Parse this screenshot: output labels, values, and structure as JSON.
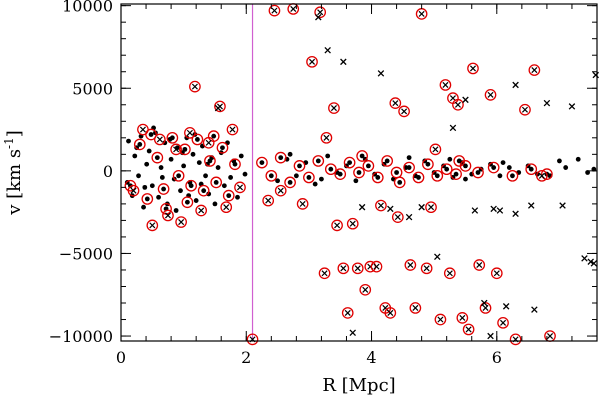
{
  "chart_data": {
    "type": "scatter",
    "xlabel": "R [Mpc]",
    "ylabel_main": "v [km s",
    "ylabel_sup": "-1",
    "ylabel_close": "]",
    "xlim": [
      0,
      7.6
    ],
    "ylim": [
      -10300,
      10100
    ],
    "x_ticks": [
      {
        "value": 0,
        "label": "0"
      },
      {
        "value": 2,
        "label": "2"
      },
      {
        "value": 4,
        "label": "4"
      },
      {
        "value": 6,
        "label": "6"
      }
    ],
    "y_ticks": [
      {
        "value": -10000,
        "label": "−10000"
      },
      {
        "value": -5000,
        "label": "−5000"
      },
      {
        "value": 0,
        "label": "0"
      },
      {
        "value": 5000,
        "label": "5000"
      },
      {
        "value": 10000,
        "label": "10000"
      }
    ],
    "x_minor_step": 0.4,
    "y_minor_step": 1000,
    "vline": {
      "x": 2.1,
      "color": "#d060d0"
    },
    "colors": {
      "ring": "#e00000",
      "dot": "#000000",
      "axis": "#000000"
    },
    "series": [
      {
        "marker": "dot",
        "points": [
          [
            0.12,
            1800
          ],
          [
            0.18,
            -1500
          ],
          [
            0.22,
            900
          ],
          [
            0.28,
            -300
          ],
          [
            0.32,
            2100
          ],
          [
            0.36,
            -2200
          ],
          [
            0.41,
            400
          ],
          [
            0.45,
            1200
          ],
          [
            0.5,
            -900
          ],
          [
            0.55,
            2300
          ],
          [
            0.6,
            -1600
          ],
          [
            0.64,
            200
          ],
          [
            0.7,
            1700
          ],
          [
            0.74,
            -2000
          ],
          [
            0.8,
            700
          ],
          [
            0.85,
            -500
          ],
          [
            0.9,
            1400
          ],
          [
            0.95,
            -1200
          ],
          [
            1.0,
            300
          ],
          [
            1.05,
            2000
          ],
          [
            1.1,
            -700
          ],
          [
            1.15,
            1000
          ],
          [
            1.2,
            -1800
          ],
          [
            1.25,
            500
          ],
          [
            1.3,
            1500
          ],
          [
            1.35,
            -300
          ],
          [
            1.4,
            -1400
          ],
          [
            1.45,
            800
          ],
          [
            1.5,
            -2000
          ],
          [
            1.55,
            200
          ],
          [
            1.6,
            1100
          ],
          [
            1.65,
            -900
          ],
          [
            1.7,
            1700
          ],
          [
            1.75,
            -400
          ],
          [
            1.8,
            600
          ],
          [
            1.86,
            -1600
          ],
          [
            1.92,
            900
          ],
          [
            1.98,
            -200
          ],
          [
            0.1,
            -700
          ],
          [
            0.25,
            1400
          ],
          [
            0.38,
            -1000
          ],
          [
            0.52,
            2600
          ],
          [
            0.66,
            -400
          ],
          [
            0.78,
            1900
          ],
          [
            0.88,
            -2400
          ],
          [
            0.98,
            1100
          ],
          [
            1.08,
            -1500
          ],
          [
            1.18,
            2200
          ],
          [
            1.28,
            -800
          ],
          [
            1.38,
            400
          ],
          [
            2.5,
            -600
          ],
          [
            2.65,
            700
          ],
          [
            2.8,
            -300
          ],
          [
            2.95,
            500
          ],
          [
            3.1,
            -800
          ],
          [
            3.3,
            900
          ],
          [
            3.45,
            -100
          ],
          [
            3.6,
            300
          ],
          [
            3.75,
            -600
          ],
          [
            3.9,
            700
          ],
          [
            4.05,
            -200
          ],
          [
            4.2,
            400
          ],
          [
            4.35,
            -500
          ],
          [
            4.55,
            200
          ],
          [
            4.7,
            -300
          ],
          [
            4.85,
            600
          ],
          [
            5.0,
            -100
          ],
          [
            5.15,
            300
          ],
          [
            5.3,
            -400
          ],
          [
            5.45,
            500
          ],
          [
            5.6,
            -200
          ],
          [
            5.75,
            100
          ],
          [
            5.9,
            400
          ],
          [
            6.05,
            -300
          ],
          [
            6.2,
            200
          ],
          [
            6.35,
            -100
          ],
          [
            6.5,
            300
          ],
          [
            6.65,
            -200
          ],
          [
            6.85,
            -300
          ],
          [
            7.0,
            600
          ],
          [
            7.1,
            200
          ],
          [
            7.3,
            700
          ],
          [
            7.45,
            -100
          ],
          [
            7.55,
            100
          ],
          [
            4.6,
            800
          ],
          [
            5.5,
            -500
          ],
          [
            3.2,
            -500
          ],
          [
            2.7,
            1000
          ],
          [
            6.1,
            500
          ],
          [
            5.25,
            700
          ]
        ]
      },
      {
        "marker": "ringdot",
        "points": [
          [
            0.15,
            -900
          ],
          [
            0.3,
            1600
          ],
          [
            0.42,
            -1700
          ],
          [
            0.58,
            800
          ],
          [
            0.68,
            -1100
          ],
          [
            0.82,
            2000
          ],
          [
            0.92,
            -300
          ],
          [
            1.02,
            1300
          ],
          [
            1.12,
            -900
          ],
          [
            1.22,
            1900
          ],
          [
            1.32,
            -1200
          ],
          [
            1.42,
            600
          ],
          [
            1.52,
            -700
          ],
          [
            1.62,
            1400
          ],
          [
            1.72,
            -1500
          ],
          [
            1.82,
            400
          ],
          [
            0.48,
            2200
          ],
          [
            0.72,
            -2300
          ],
          [
            1.06,
            -1900
          ],
          [
            1.48,
            2100
          ],
          [
            2.25,
            500
          ],
          [
            2.4,
            -300
          ],
          [
            2.55,
            800
          ],
          [
            2.7,
            -700
          ],
          [
            2.85,
            300
          ],
          [
            3.0,
            -400
          ],
          [
            3.15,
            600
          ],
          [
            3.35,
            100
          ],
          [
            3.5,
            -200
          ],
          [
            3.65,
            500
          ],
          [
            3.8,
            -100
          ],
          [
            3.95,
            300
          ],
          [
            4.1,
            -400
          ],
          [
            4.25,
            600
          ],
          [
            4.4,
            -100
          ],
          [
            4.6,
            200
          ],
          [
            4.75,
            -400
          ],
          [
            4.9,
            400
          ],
          [
            5.05,
            -300
          ],
          [
            5.2,
            100
          ],
          [
            5.35,
            -200
          ],
          [
            5.5,
            300
          ],
          [
            5.7,
            -100
          ],
          [
            5.95,
            200
          ],
          [
            6.25,
            -300
          ],
          [
            6.55,
            100
          ],
          [
            6.8,
            -200
          ],
          [
            3.85,
            900
          ],
          [
            4.45,
            -700
          ],
          [
            5.4,
            600
          ]
        ]
      },
      {
        "marker": "ringx",
        "points": [
          [
            0.2,
            -1200
          ],
          [
            0.35,
            2500
          ],
          [
            0.5,
            -3300
          ],
          [
            0.62,
            1900
          ],
          [
            0.75,
            -2700
          ],
          [
            0.88,
            1300
          ],
          [
            0.96,
            -3100
          ],
          [
            1.1,
            2300
          ],
          [
            1.18,
            5100
          ],
          [
            1.28,
            -2400
          ],
          [
            1.4,
            1700
          ],
          [
            1.58,
            3900
          ],
          [
            1.68,
            -2200
          ],
          [
            1.78,
            2500
          ],
          [
            1.9,
            -1000
          ],
          [
            2.35,
            -1800
          ],
          [
            2.45,
            9700
          ],
          [
            2.55,
            -1200
          ],
          [
            2.75,
            9800
          ],
          [
            2.9,
            -2000
          ],
          [
            3.05,
            6600
          ],
          [
            3.18,
            9600
          ],
          [
            3.25,
            -6200
          ],
          [
            3.28,
            2000
          ],
          [
            3.4,
            3800
          ],
          [
            3.45,
            -3300
          ],
          [
            3.55,
            -5900
          ],
          [
            3.62,
            -8600
          ],
          [
            3.7,
            -3200
          ],
          [
            3.78,
            -5900
          ],
          [
            3.9,
            -7200
          ],
          [
            3.98,
            -5800
          ],
          [
            4.08,
            -5800
          ],
          [
            4.15,
            -2100
          ],
          [
            4.22,
            -8300
          ],
          [
            4.3,
            -8600
          ],
          [
            4.38,
            4100
          ],
          [
            4.42,
            -2800
          ],
          [
            4.52,
            3600
          ],
          [
            4.62,
            -5700
          ],
          [
            4.7,
            -8300
          ],
          [
            4.8,
            9500
          ],
          [
            4.88,
            -5900
          ],
          [
            4.95,
            -2200
          ],
          [
            5.02,
            1300
          ],
          [
            5.1,
            -9000
          ],
          [
            5.18,
            5200
          ],
          [
            5.25,
            -6200
          ],
          [
            5.3,
            4400
          ],
          [
            5.38,
            4000
          ],
          [
            5.45,
            -8900
          ],
          [
            5.55,
            -9600
          ],
          [
            5.62,
            6200
          ],
          [
            5.72,
            -5700
          ],
          [
            5.82,
            -8300
          ],
          [
            5.9,
            4600
          ],
          [
            6.0,
            -6200
          ],
          [
            6.1,
            -9200
          ],
          [
            6.3,
            -10200
          ],
          [
            6.45,
            3700
          ],
          [
            6.6,
            6100
          ],
          [
            6.72,
            -300
          ],
          [
            6.85,
            -10000
          ],
          [
            2.1,
            -10200
          ]
        ]
      },
      {
        "marker": "x",
        "points": [
          [
            1.55,
            3800
          ],
          [
            3.15,
            9300
          ],
          [
            3.3,
            7300
          ],
          [
            3.55,
            6600
          ],
          [
            3.7,
            -9800
          ],
          [
            3.85,
            -2200
          ],
          [
            4.3,
            -2300
          ],
          [
            4.6,
            -2800
          ],
          [
            4.8,
            -2200
          ],
          [
            5.05,
            -5200
          ],
          [
            5.3,
            2600
          ],
          [
            5.5,
            4300
          ],
          [
            5.65,
            -2400
          ],
          [
            5.8,
            -8000
          ],
          [
            5.95,
            -2300
          ],
          [
            6.05,
            -2400
          ],
          [
            6.15,
            -8200
          ],
          [
            6.3,
            5200
          ],
          [
            6.55,
            -2100
          ],
          [
            6.8,
            4100
          ],
          [
            7.05,
            -2100
          ],
          [
            7.2,
            3900
          ],
          [
            7.4,
            -5300
          ],
          [
            7.5,
            -5500
          ],
          [
            7.55,
            -5600
          ],
          [
            7.58,
            5800
          ],
          [
            6.6,
            -8400
          ],
          [
            6.3,
            -2600
          ],
          [
            4.15,
            5900
          ],
          [
            5.9,
            -10000
          ]
        ]
      }
    ]
  }
}
